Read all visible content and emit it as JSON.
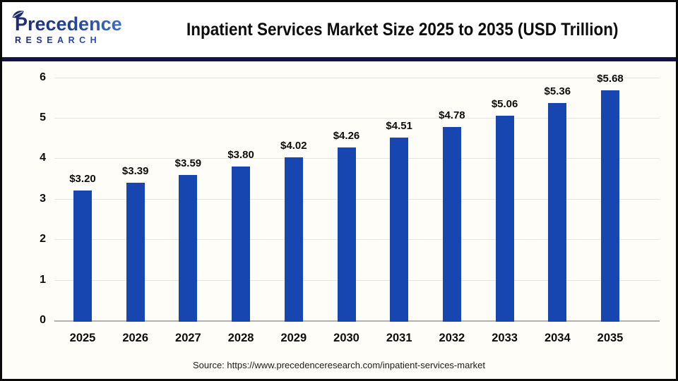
{
  "header": {
    "logo": {
      "name": "Precedence",
      "subname": "RESEARCH"
    },
    "title": "Inpatient Services Market Size 2025 to 2035 (USD Trillion)"
  },
  "chart_data": {
    "type": "bar",
    "title": "Inpatient Services Market Size 2025 to 2035 (USD Trillion)",
    "categories": [
      "2025",
      "2026",
      "2027",
      "2028",
      "2029",
      "2030",
      "2031",
      "2032",
      "2033",
      "2034",
      "2035"
    ],
    "values": [
      3.2,
      3.39,
      3.59,
      3.8,
      4.02,
      4.26,
      4.51,
      4.78,
      5.06,
      5.36,
      5.68
    ],
    "value_labels": [
      "$3.20",
      "$3.39",
      "$3.59",
      "$3.80",
      "$4.02",
      "$4.26",
      "$4.51",
      "$4.78",
      "$5.06",
      "$5.36",
      "$5.68"
    ],
    "unit": "USD Trillion",
    "y_ticks": [
      0,
      1,
      2,
      3,
      4,
      5,
      6
    ],
    "ylim": [
      0,
      6
    ],
    "xlabel": "",
    "ylabel": "",
    "grid": true,
    "legend_position": "none",
    "bar_color": "#1746b0"
  },
  "footer": {
    "source": "Source: https://www.precedenceresearch.com/inpatient-services-market"
  },
  "colors": {
    "bar": "#1746b0",
    "separator_band": "#12143f",
    "gridline": "#e7e4de",
    "baseline": "#b0b0b0",
    "chart_background": "#fffdf7",
    "logo_navy": "#1d2b6e",
    "logo_blue": "#4b87d9",
    "page_border": "#0a0a0a"
  }
}
